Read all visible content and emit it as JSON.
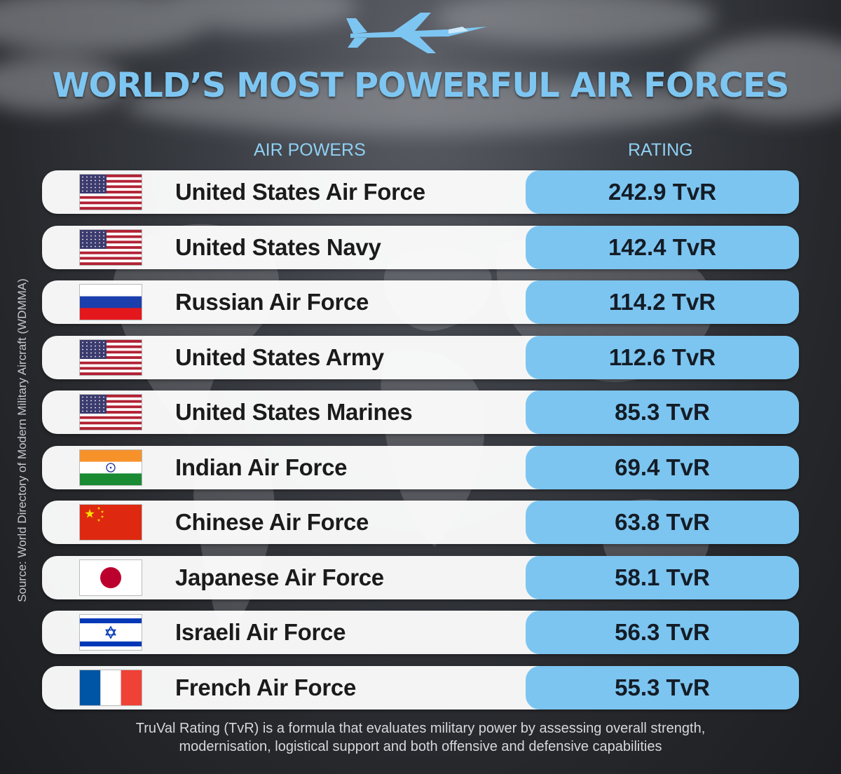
{
  "title": "WORLD’S MOST POWERFUL AIR FORCES",
  "headers": {
    "air_powers": "AIR POWERS",
    "rating": "RATING"
  },
  "source": "Source: World Directory of Modern Military Aircraft (WDMMA)",
  "footnote": {
    "line1": "TruVal Rating (TvR) is a formula that evaluates military power by assessing overall strength,",
    "line2": "modernisation, logistical support and both offensive and defensive capabilities"
  },
  "colors": {
    "accent": "#7ec6f2",
    "rating_bg": "#7cc5f0",
    "row_bg": "#ffffff"
  },
  "chart_data": {
    "type": "table",
    "columns": [
      "AIR POWERS",
      "RATING"
    ],
    "rows": [
      {
        "flag": "usa-flag-icon",
        "name": "United States Air Force",
        "value": 242.9,
        "label": "242.9 TvR"
      },
      {
        "flag": "usa-flag-icon",
        "name": "United States Navy",
        "value": 142.4,
        "label": "142.4 TvR"
      },
      {
        "flag": "russia-flag-icon",
        "name": "Russian Air Force",
        "value": 114.2,
        "label": "114.2 TvR"
      },
      {
        "flag": "usa-flag-icon",
        "name": "United States Army",
        "value": 112.6,
        "label": "112.6 TvR"
      },
      {
        "flag": "usa-flag-icon",
        "name": "United States Marines",
        "value": 85.3,
        "label": "85.3 TvR"
      },
      {
        "flag": "india-flag-icon",
        "name": "Indian Air Force",
        "value": 69.4,
        "label": "69.4 TvR"
      },
      {
        "flag": "china-flag-icon",
        "name": "Chinese Air Force",
        "value": 63.8,
        "label": "63.8 TvR"
      },
      {
        "flag": "japan-flag-icon",
        "name": "Japanese Air Force",
        "value": 58.1,
        "label": "58.1 TvR"
      },
      {
        "flag": "israel-flag-icon",
        "name": "Israeli Air Force",
        "value": 56.3,
        "label": "56.3 TvR"
      },
      {
        "flag": "france-flag-icon",
        "name": "French Air Force",
        "value": 55.3,
        "label": "55.3 TvR"
      }
    ]
  }
}
